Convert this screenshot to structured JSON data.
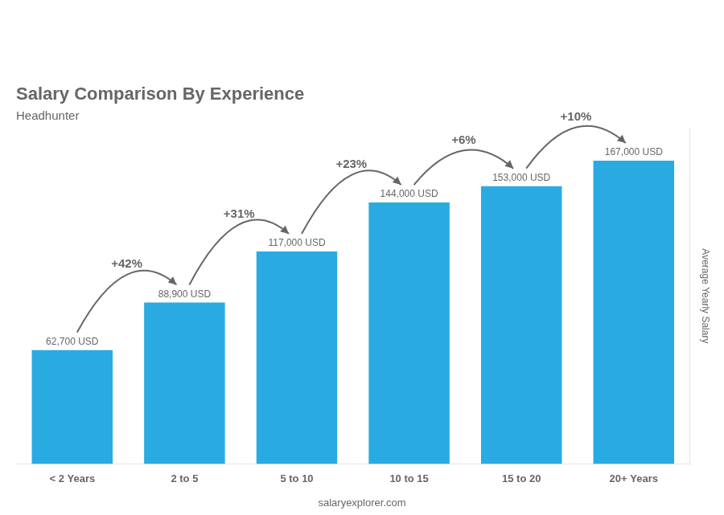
{
  "chart_data": {
    "type": "bar",
    "title": "Salary Comparison By Experience",
    "subtitle": "Headhunter",
    "y_label": "Average Yearly Salary",
    "footer": "salaryexplorer.com",
    "categories": [
      "< 2 Years",
      "2 to 5",
      "5 to 10",
      "10 to 15",
      "15 to 20",
      "20+ Years"
    ],
    "values": [
      62700,
      88900,
      117000,
      144000,
      153000,
      167000
    ],
    "value_labels": [
      "62,700 USD",
      "88,900 USD",
      "117,000 USD",
      "144,000 USD",
      "153,000 USD",
      "167,000 USD"
    ],
    "data_labels": true,
    "color": "#29ABE2",
    "ylim": [
      0,
      185000
    ],
    "tick_labels": "x",
    "grid": false,
    "annotations": [
      {
        "from": "< 2 Years",
        "to": "2 to 5",
        "text": "+42%"
      },
      {
        "from": "2 to 5",
        "to": "5 to 10",
        "text": "+31%"
      },
      {
        "from": "5 to 10",
        "to": "10 to 15",
        "text": "+23%"
      },
      {
        "from": "10 to 15",
        "to": "15 to 20",
        "text": "+6%"
      },
      {
        "from": "15 to 20",
        "to": "20+ Years",
        "text": "+10%"
      }
    ]
  }
}
